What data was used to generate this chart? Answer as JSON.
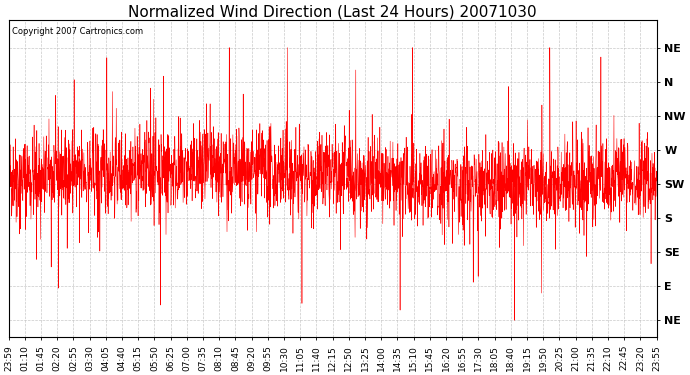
{
  "title": "Normalized Wind Direction (Last 24 Hours) 20071030",
  "copyright_text": "Copyright 2007 Cartronics.com",
  "line_color": "#ff0000",
  "background_color": "#ffffff",
  "grid_color": "#bbbbbb",
  "ytick_labels": [
    "NE",
    "N",
    "NW",
    "W",
    "SW",
    "S",
    "SE",
    "E",
    "NE"
  ],
  "ytick_values": [
    8,
    7,
    6,
    5,
    4,
    3,
    2,
    1,
    0
  ],
  "ylim": [
    -0.5,
    8.8
  ],
  "xtick_labels": [
    "23:59",
    "01:10",
    "01:45",
    "02:20",
    "02:55",
    "03:30",
    "04:05",
    "04:40",
    "05:15",
    "05:50",
    "06:25",
    "07:00",
    "07:35",
    "08:10",
    "08:45",
    "09:20",
    "09:55",
    "10:30",
    "11:05",
    "11:40",
    "12:15",
    "12:50",
    "13:25",
    "14:00",
    "14:35",
    "15:10",
    "15:45",
    "16:20",
    "16:55",
    "17:30",
    "18:05",
    "18:40",
    "19:15",
    "19:50",
    "20:25",
    "21:00",
    "21:35",
    "22:10",
    "22:45",
    "23:20",
    "23:55"
  ],
  "seed": 42,
  "n_points": 2880,
  "base_value": 4.2,
  "noise_scale": 0.6,
  "spike_count": 120,
  "spike_scale": 1.8,
  "title_fontsize": 11,
  "label_fontsize": 8,
  "tick_fontsize": 6.5,
  "figwidth": 6.9,
  "figheight": 3.75,
  "dpi": 100
}
